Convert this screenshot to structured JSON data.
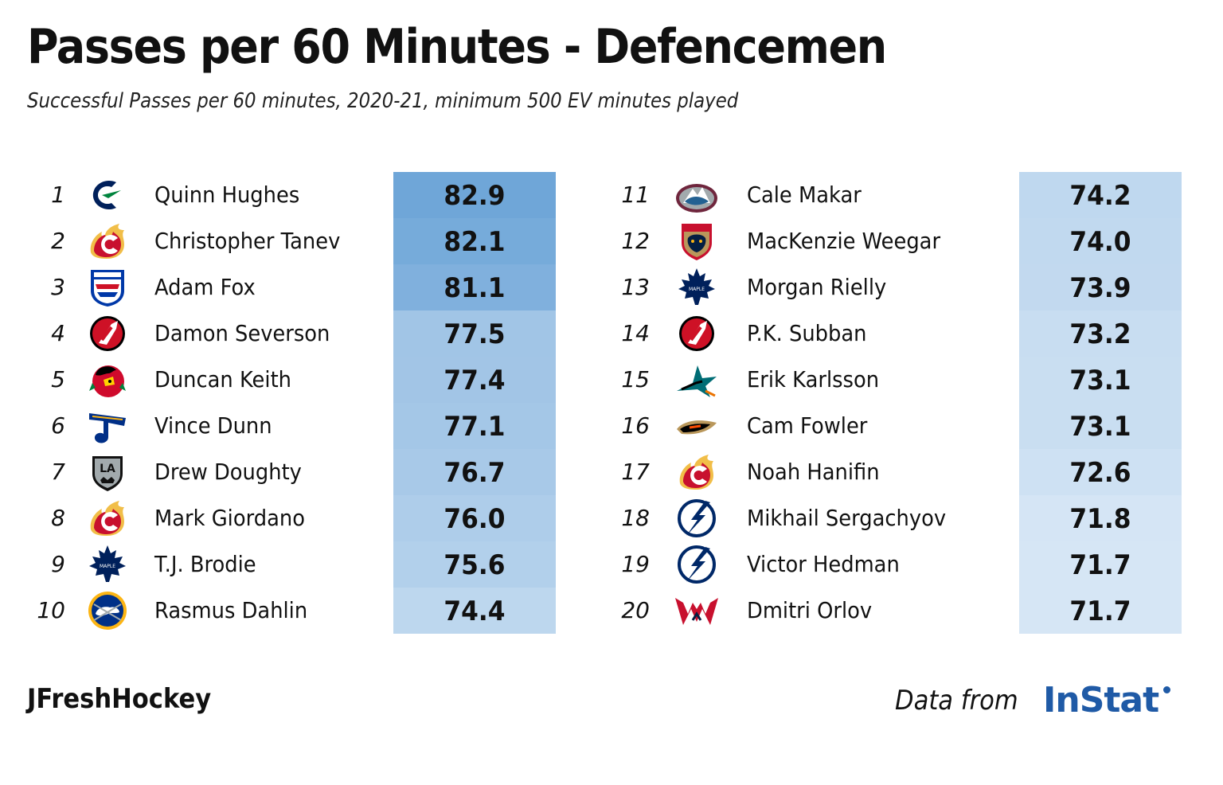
{
  "title": "Passes per 60 Minutes - Defencemen",
  "subtitle": "Successful Passes per 60 minutes, 2020-21, minimum 500 EV minutes played",
  "footer": {
    "author": "JFreshHockey",
    "source_prefix": "Data from",
    "source_brand": "InStat"
  },
  "colors": {
    "scale_low": "#d6e6f5",
    "scale_high": "#6fa6d8",
    "brand": "#1f5aa6"
  },
  "chart_data": {
    "type": "table",
    "columns": [
      "rank",
      "team_logo",
      "player",
      "successful_passes_per_60"
    ],
    "rows": [
      {
        "rank": "1",
        "team": "vancouver-canucks-logo",
        "player": "Quinn Hughes",
        "value": 82.9
      },
      {
        "rank": "2",
        "team": "calgary-flames-logo",
        "player": "Christopher Tanev",
        "value": 82.1
      },
      {
        "rank": "3",
        "team": "new-york-rangers-logo",
        "player": "Adam Fox",
        "value": 81.1
      },
      {
        "rank": "4",
        "team": "new-jersey-devils-logo",
        "player": "Damon Severson",
        "value": 77.5
      },
      {
        "rank": "5",
        "team": "chicago-blackhawks-logo",
        "player": "Duncan Keith",
        "value": 77.4
      },
      {
        "rank": "6",
        "team": "st-louis-blues-logo",
        "player": "Vince Dunn",
        "value": 77.1
      },
      {
        "rank": "7",
        "team": "los-angeles-kings-logo",
        "player": "Drew Doughty",
        "value": 76.7
      },
      {
        "rank": "8",
        "team": "calgary-flames-logo",
        "player": "Mark Giordano",
        "value": 76.0
      },
      {
        "rank": "9",
        "team": "toronto-maple-leafs-logo",
        "player": "T.J. Brodie",
        "value": 75.6
      },
      {
        "rank": "10",
        "team": "buffalo-sabres-logo",
        "player": "Rasmus Dahlin",
        "value": 74.4
      },
      {
        "rank": "11",
        "team": "colorado-avalanche-logo",
        "player": "Cale Makar",
        "value": 74.2
      },
      {
        "rank": "12",
        "team": "florida-panthers-logo",
        "player": "MacKenzie Weegar",
        "value": 74.0
      },
      {
        "rank": "13",
        "team": "toronto-maple-leafs-logo",
        "player": "Morgan Rielly",
        "value": 73.9
      },
      {
        "rank": "14",
        "team": "new-jersey-devils-logo",
        "player": "P.K. Subban",
        "value": 73.2
      },
      {
        "rank": "15",
        "team": "san-jose-sharks-logo",
        "player": "Erik Karlsson",
        "value": 73.1
      },
      {
        "rank": "16",
        "team": "anaheim-ducks-logo",
        "player": "Cam Fowler",
        "value": 73.1
      },
      {
        "rank": "17",
        "team": "calgary-flames-logo",
        "player": "Noah Hanifin",
        "value": 72.6
      },
      {
        "rank": "18",
        "team": "tampa-bay-lightning-logo",
        "player": "Mikhail Sergachyov",
        "value": 71.8
      },
      {
        "rank": "19",
        "team": "tampa-bay-lightning-logo",
        "player": "Victor Hedman",
        "value": 71.7
      },
      {
        "rank": "20",
        "team": "washington-capitals-logo",
        "player": "Dmitri Orlov",
        "value": 71.7
      }
    ]
  }
}
